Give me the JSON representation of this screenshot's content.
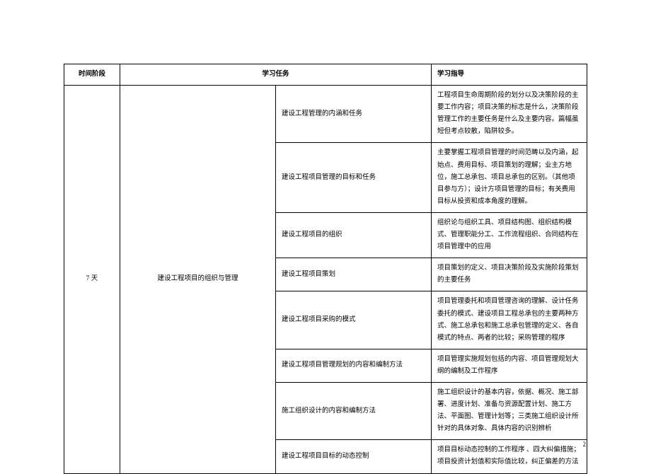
{
  "table": {
    "headers": {
      "stage": "时间阶段",
      "task": "学习任务",
      "guide": "学习指导"
    },
    "stage": "7 天",
    "task_main": "建设工程项目的组织与管理",
    "rows": [
      {
        "sub": "建设工程管理的内涵和任务",
        "guide": "工程项目生命周期阶段的划分以及决策阶段的主要工作内容；项目决策的标志是什么，决策阶段管理工作的主要任务是什么及主要内容。篇幅虽短但考点较散，陷阱较多。"
      },
      {
        "sub": "建设工程项目管理的目标和任务",
        "guide": "主要掌握工程项目管理的时间范畴以及内涵，起始点、费用目标、项目策划的理解；业主方地位，施工总承包、项目总承包的区别。（其他项目参与方）；设计方项目管理的目标；有关费用目标从投资和成本角度的理解。"
      },
      {
        "sub": "建设工程项目的组织",
        "guide": "组织论与组织工具、项目结构图、组织结构模式、管理职能分工、工作流程组织、合同结构在项目管理中的应用"
      },
      {
        "sub": "建设工程项目策划",
        "guide": "项目策划的定义、项目决策阶段及实施阶段策划的主要任务"
      },
      {
        "sub": "建设工程项目采购的模式",
        "guide": "项目管理委托和项目管理咨询的理解、设计任务委托的模式、建设项目工程总承包的主要两种方式、施工总承包和施工总承包管理的定义、各自模式的特点、两者的比较；采购管理的程序"
      },
      {
        "sub": "建设工程项目管理规划的内容和编制方法",
        "guide": "项目管理实施规划包括的内容、项目管理规划大纲的编制及工作程序"
      },
      {
        "sub": "施工组织设计的内容和编制方法",
        "guide": "施工组织设计的基本内容，依据、概况、施工部署、进度计划、准备与资源配置计划、施工方法、平面图、管理计划等；三类施工组织设计所针对的具体对象、具体内容的识别辨析"
      },
      {
        "sub": "建设工程项目目标的动态控制",
        "guide": "项目目标动态控制的工作程序 、四大纠偏措施；项目投资计划值和实际值比较，纠正偏差的方法"
      }
    ]
  },
  "page_number": "2"
}
